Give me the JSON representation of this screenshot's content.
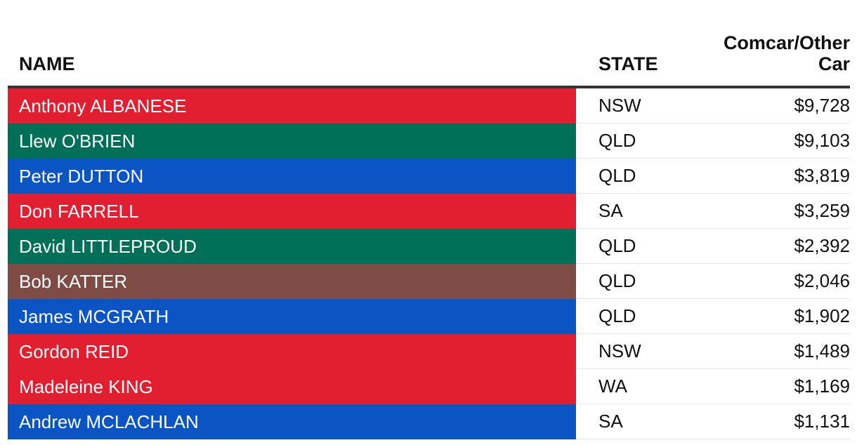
{
  "chart_data": {
    "type": "table",
    "columns": [
      "NAME",
      "STATE",
      "Comcar/Other Car"
    ],
    "header": {
      "name": "NAME",
      "state": "STATE",
      "car_line1": "Comcar/Other",
      "car_line2": "Car"
    },
    "party_colors": {
      "labor": "#e11f30",
      "nationals": "#006f58",
      "liberal": "#0b54c3",
      "katter": "#7e4b45"
    },
    "rows": [
      {
        "name": "Anthony ALBANESE",
        "state": "NSW",
        "car": "$9,728",
        "value": 9728,
        "color": "#e11f30"
      },
      {
        "name": "Llew O'BRIEN",
        "state": "QLD",
        "car": "$9,103",
        "value": 9103,
        "color": "#006f58"
      },
      {
        "name": "Peter DUTTON",
        "state": "QLD",
        "car": "$3,819",
        "value": 3819,
        "color": "#0b54c3"
      },
      {
        "name": "Don FARRELL",
        "state": "SA",
        "car": "$3,259",
        "value": 3259,
        "color": "#e11f30"
      },
      {
        "name": "David LITTLEPROUD",
        "state": "QLD",
        "car": "$2,392",
        "value": 2392,
        "color": "#006f58"
      },
      {
        "name": "Bob KATTER",
        "state": "QLD",
        "car": "$2,046",
        "value": 2046,
        "color": "#7e4b45"
      },
      {
        "name": "James MCGRATH",
        "state": "QLD",
        "car": "$1,902",
        "value": 1902,
        "color": "#0b54c3"
      },
      {
        "name": "Gordon REID",
        "state": "NSW",
        "car": "$1,489",
        "value": 1489,
        "color": "#e11f30"
      },
      {
        "name": "Madeleine KING",
        "state": "WA",
        "car": "$1,169",
        "value": 1169,
        "color": "#e11f30"
      },
      {
        "name": "Andrew MCLACHLAN",
        "state": "SA",
        "car": "$1,131",
        "value": 1131,
        "color": "#0b54c3"
      }
    ]
  }
}
